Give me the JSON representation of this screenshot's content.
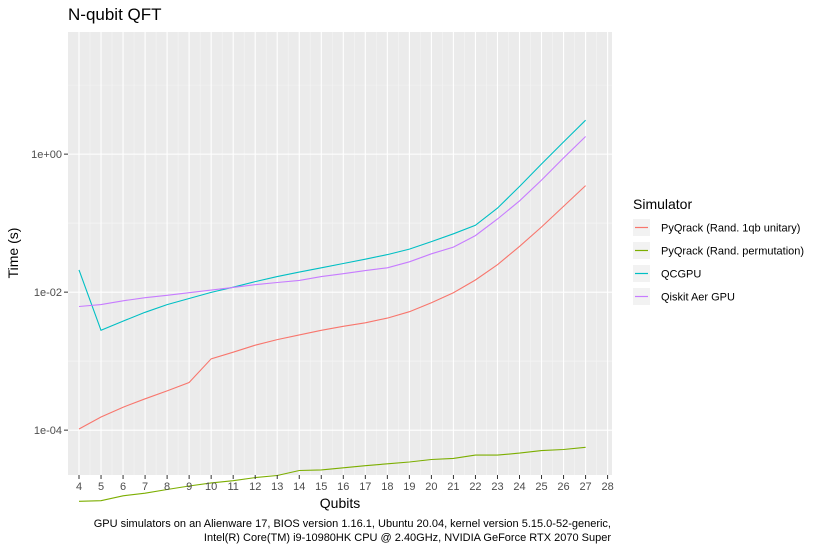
{
  "chart_data": {
    "type": "line",
    "title": "N-qubit QFT",
    "xlabel": "Qubits",
    "ylabel": "Time (s)",
    "y_scale": "log10",
    "xlim": [
      3.5,
      28.2
    ],
    "ylim_log10": [
      -4.65,
      1.77
    ],
    "x_ticks": [
      4,
      5,
      6,
      7,
      8,
      9,
      10,
      11,
      12,
      13,
      14,
      15,
      16,
      17,
      18,
      19,
      20,
      21,
      22,
      23,
      24,
      25,
      26,
      27,
      28
    ],
    "y_ticks": [
      {
        "value": 0.0001,
        "label": "1e-04"
      },
      {
        "value": 0.01,
        "label": "1e-02"
      },
      {
        "value": 1,
        "label": "1e+00"
      }
    ],
    "grid": true,
    "legend": {
      "title": "Simulator",
      "position": "right"
    },
    "x": [
      4,
      5,
      6,
      7,
      8,
      9,
      10,
      11,
      12,
      13,
      14,
      15,
      16,
      17,
      18,
      19,
      20,
      21,
      22,
      23,
      24,
      25,
      26,
      27
    ],
    "series": [
      {
        "name": "PyQrack (Rand. 1qb unitary)",
        "color": "#F8766D",
        "values": [
          0.000104,
          0.000155,
          0.000215,
          0.000285,
          0.00037,
          0.00049,
          0.00108,
          0.00135,
          0.0017,
          0.00205,
          0.0024,
          0.0028,
          0.0032,
          0.0036,
          0.0042,
          0.0052,
          0.007,
          0.0098,
          0.015,
          0.025,
          0.046,
          0.088,
          0.175,
          0.35
        ]
      },
      {
        "name": "PyQrack (Rand. permutation)",
        "color": "#7CAE00",
        "values": [
          9.3e-06,
          9.5e-06,
          1.12e-05,
          1.22e-05,
          1.38e-05,
          1.55e-05,
          1.72e-05,
          1.85e-05,
          2.05e-05,
          2.2e-05,
          2.6e-05,
          2.65e-05,
          2.85e-05,
          3.05e-05,
          3.25e-05,
          3.45e-05,
          3.75e-05,
          3.9e-05,
          4.35e-05,
          4.35e-05,
          4.65e-05,
          5.05e-05,
          5.25e-05,
          5.65e-05
        ]
      },
      {
        "name": "QCGPU",
        "color": "#00BFC4",
        "values": [
          0.021,
          0.0028,
          0.0038,
          0.0051,
          0.0066,
          0.0081,
          0.0099,
          0.0118,
          0.0142,
          0.0168,
          0.0195,
          0.0225,
          0.026,
          0.03,
          0.035,
          0.042,
          0.054,
          0.07,
          0.093,
          0.165,
          0.34,
          0.72,
          1.5,
          3.1
        ]
      },
      {
        "name": "Qiskit Aer GPU",
        "color": "#C77CFF",
        "values": [
          0.0062,
          0.0066,
          0.0075,
          0.0083,
          0.009,
          0.0098,
          0.0107,
          0.0117,
          0.0128,
          0.0138,
          0.0148,
          0.0168,
          0.0185,
          0.0205,
          0.0225,
          0.0275,
          0.036,
          0.045,
          0.066,
          0.115,
          0.21,
          0.42,
          0.88,
          1.8
        ]
      }
    ]
  },
  "caption": {
    "line1": "GPU simulators on an Alienware 17, BIOS version 1.16.1, Ubuntu 20.04, kernel version 5.15.0-52-generic,",
    "line2": "Intel(R) Core(TM) i9-10980HK CPU @ 2.40GHz, NVIDIA GeForce RTX 2070 Super"
  }
}
